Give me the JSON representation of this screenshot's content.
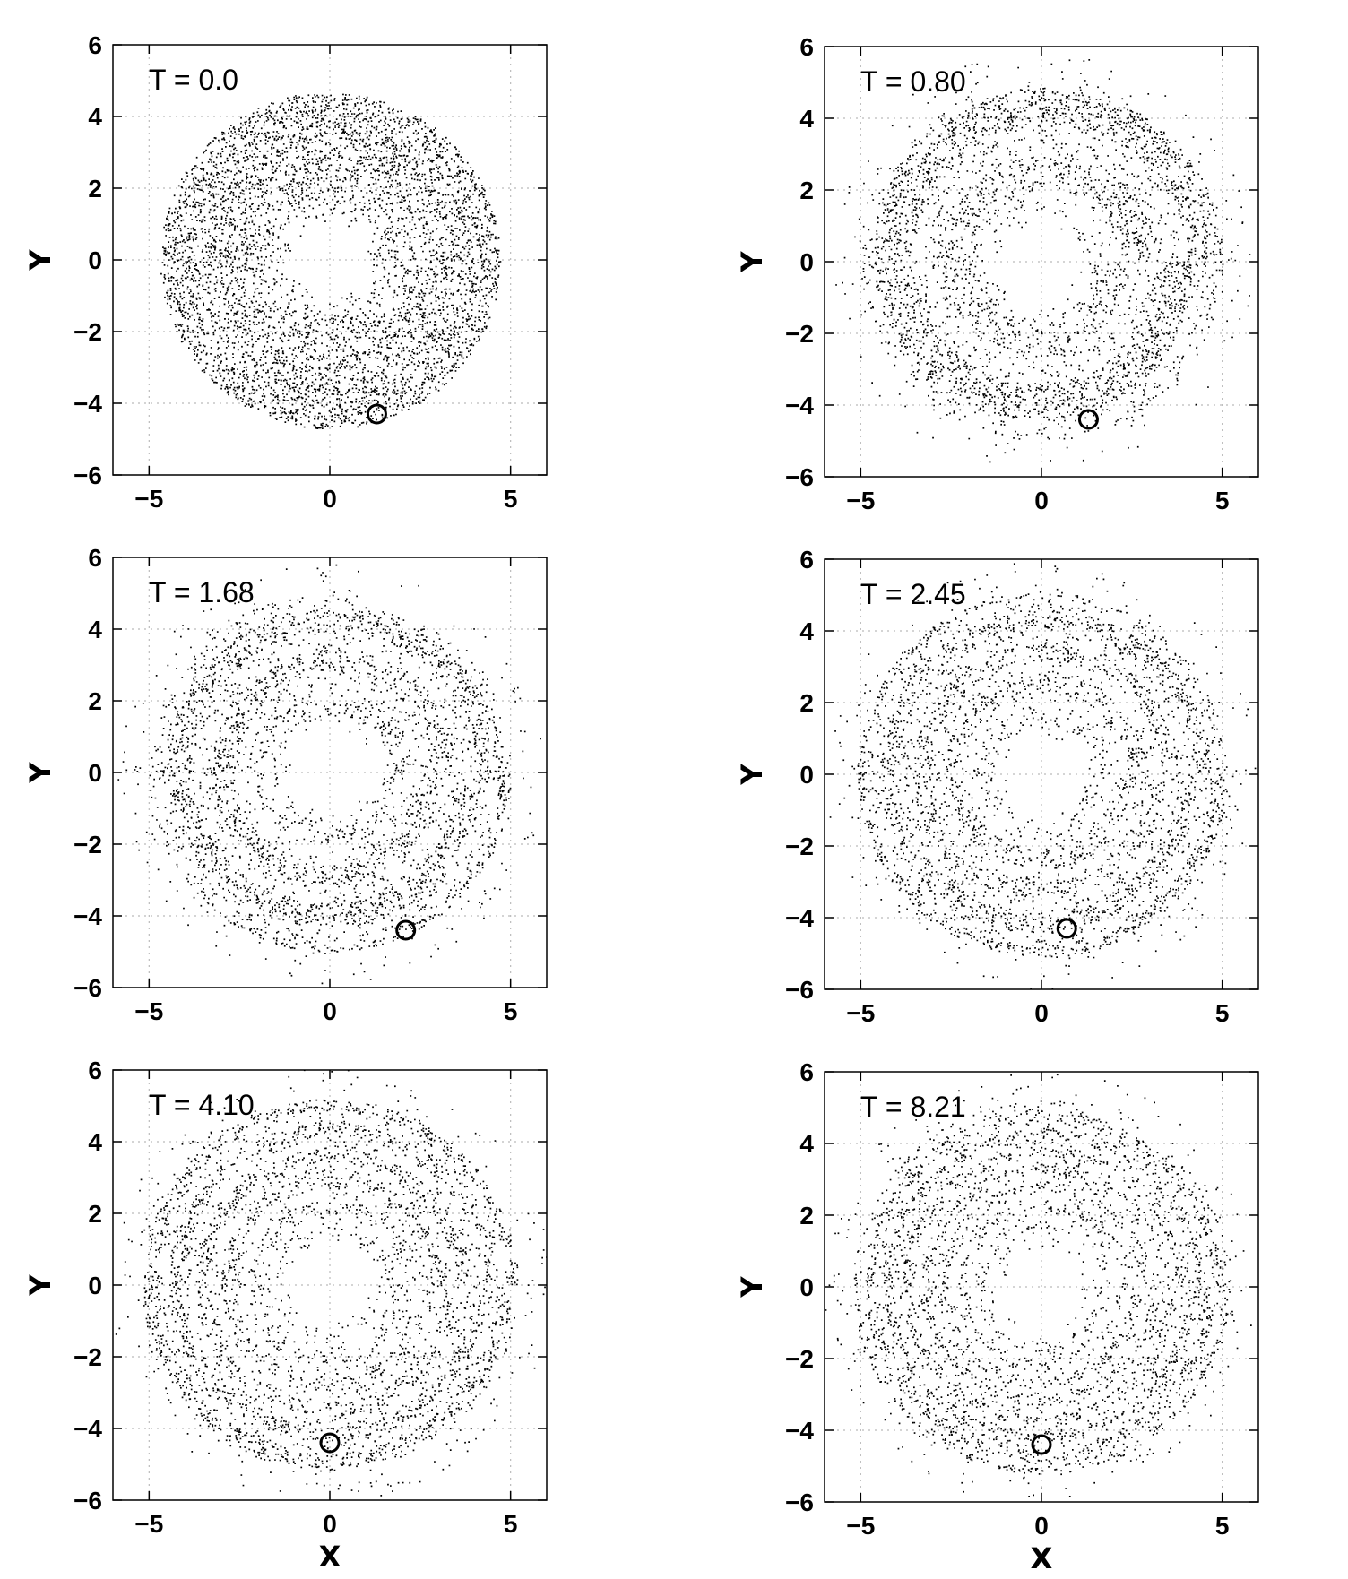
{
  "figure": {
    "xlabel": "X",
    "ylabel": "Y"
  },
  "chart_data": [
    {
      "type": "scatter",
      "panel_label": "T = 0.0",
      "xlabel": "",
      "ylabel": "Y",
      "xlim": [
        -6.0,
        6.0
      ],
      "ylim": [
        -6,
        6
      ],
      "xticks": [
        "−5",
        "0",
        "5"
      ],
      "yticks": [
        "6",
        "4",
        "2",
        "0",
        "−2",
        "−4",
        "−6"
      ],
      "grid": true,
      "disk": {
        "inner_radius": 1.0,
        "outer_radius": 4.7,
        "center": [
          0,
          0
        ],
        "arm_winding": 0.0,
        "rings": 0
      },
      "perturber": {
        "x": 1.3,
        "y": -4.3
      }
    },
    {
      "type": "scatter",
      "panel_label": "T = 0.80",
      "xlabel": "",
      "ylabel": "Y",
      "xlim": [
        -6.0,
        6.0
      ],
      "ylim": [
        -6,
        6
      ],
      "xticks": [
        "−5",
        "0",
        "5"
      ],
      "yticks": [
        "6",
        "4",
        "2",
        "0",
        "−2",
        "−4",
        "−6"
      ],
      "grid": true,
      "disk": {
        "inner_radius": 1.0,
        "outer_radius": 5.0,
        "center": [
          0,
          0
        ],
        "arm_winding": 0.6,
        "rings": 1
      },
      "perturber": {
        "x": 1.3,
        "y": -4.4
      }
    },
    {
      "type": "scatter",
      "panel_label": "T = 1.68",
      "xlabel": "",
      "ylabel": "Y",
      "xlim": [
        -6.0,
        6.0
      ],
      "ylim": [
        -6,
        6
      ],
      "xticks": [
        "−5",
        "0",
        "5"
      ],
      "yticks": [
        "6",
        "4",
        "2",
        "0",
        "−2",
        "−4",
        "−6"
      ],
      "grid": true,
      "disk": {
        "inner_radius": 1.0,
        "outer_radius": 5.0,
        "center": [
          0,
          0
        ],
        "arm_winding": 1.2,
        "rings": 2
      },
      "perturber": {
        "x": 2.1,
        "y": -4.4
      }
    },
    {
      "type": "scatter",
      "panel_label": "T = 2.45",
      "xlabel": "",
      "ylabel": "Y",
      "xlim": [
        -6.0,
        6.0
      ],
      "ylim": [
        -6,
        6
      ],
      "xticks": [
        "−5",
        "0",
        "5"
      ],
      "yticks": [
        "6",
        "4",
        "2",
        "0",
        "−2",
        "−4",
        "−6"
      ],
      "grid": true,
      "disk": {
        "inner_radius": 1.0,
        "outer_radius": 5.1,
        "center": [
          0,
          0
        ],
        "arm_winding": 1.8,
        "rings": 3
      },
      "perturber": {
        "x": 0.7,
        "y": -4.3
      }
    },
    {
      "type": "scatter",
      "panel_label": "T = 4.10",
      "xlabel": "X",
      "ylabel": "Y",
      "xlim": [
        -6.0,
        6.0
      ],
      "ylim": [
        -6,
        6
      ],
      "xticks": [
        "−5",
        "0",
        "5"
      ],
      "yticks": [
        "6",
        "4",
        "2",
        "0",
        "−2",
        "−4",
        "−6"
      ],
      "grid": true,
      "disk": {
        "inner_radius": 1.0,
        "outer_radius": 5.2,
        "center": [
          0,
          0
        ],
        "arm_winding": 2.6,
        "rings": 4
      },
      "perturber": {
        "x": 0.0,
        "y": -4.4
      }
    },
    {
      "type": "scatter",
      "panel_label": "T = 8.21",
      "xlabel": "X",
      "ylabel": "Y",
      "xlim": [
        -6.0,
        6.0
      ],
      "ylim": [
        -6,
        6
      ],
      "xticks": [
        "−5",
        "0",
        "5"
      ],
      "yticks": [
        "6",
        "4",
        "2",
        "0",
        "−2",
        "−4",
        "−6"
      ],
      "grid": true,
      "disk": {
        "inner_radius": 1.0,
        "outer_radius": 5.2,
        "center": [
          0,
          0
        ],
        "arm_winding": 4.0,
        "rings": 6
      },
      "perturber": {
        "x": 0.0,
        "y": -4.4
      }
    }
  ]
}
